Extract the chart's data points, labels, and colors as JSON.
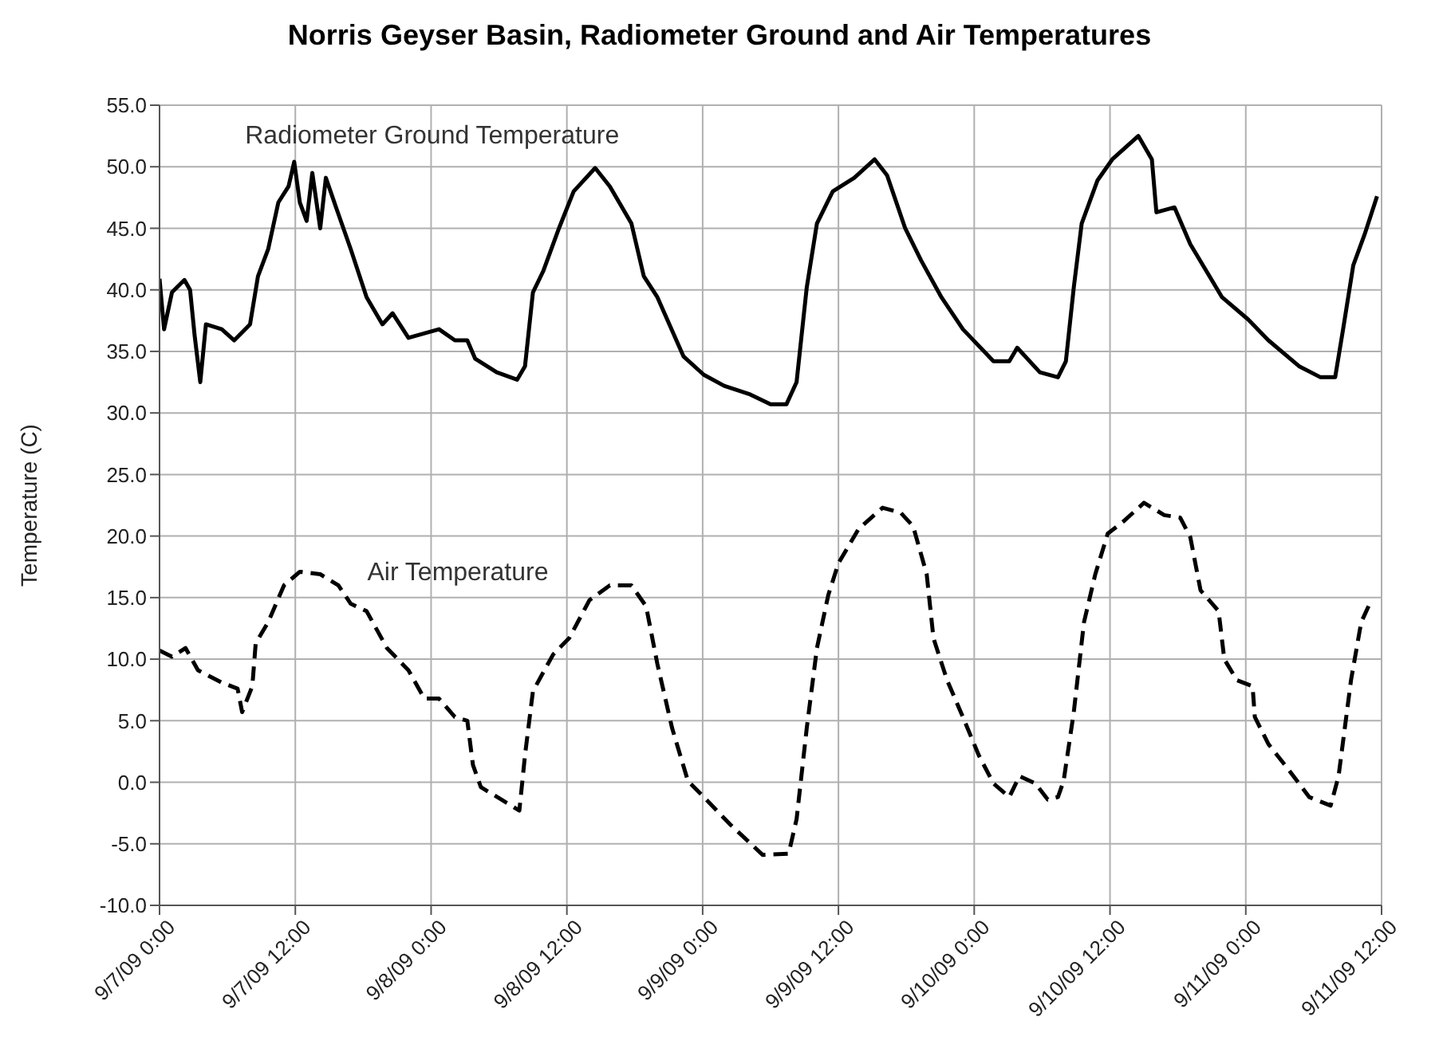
{
  "chart_data": {
    "type": "line",
    "title": "Norris Geyser Basin, Radiometer Ground and Air Temperatures",
    "ylabel": "Temperature (C)",
    "xlim": [
      "--09-07T00:00",
      "--09-11T12:00"
    ],
    "xticks": [
      {
        "value": "--09-07T00:00",
        "label": "9/7/09 0:00"
      },
      {
        "value": "--09-07T12:00",
        "label": "9/7/09 12:00"
      },
      {
        "value": "--09-08T00:00",
        "label": "9/8/09 0:00"
      },
      {
        "value": "--09-08T12:00",
        "label": "9/8/09 12:00"
      },
      {
        "value": "--09-09T00:00",
        "label": "9/9/09 0:00"
      },
      {
        "value": "--09-09T12:00",
        "label": "9/9/09 12:00"
      },
      {
        "value": "--09-10T00:00",
        "label": "9/10/09 0:00"
      },
      {
        "value": "--09-10T12:00",
        "label": "9/10/09 12:00"
      },
      {
        "value": "--09-11T00:00",
        "label": "9/11/09 0:00"
      },
      {
        "value": "--09-11T12:00",
        "label": "9/11/09 12:00"
      }
    ],
    "ylim": [
      -10,
      55
    ],
    "yticks": [
      {
        "value": -10,
        "label": "-10.0"
      },
      {
        "value": -5,
        "label": "-5.0"
      },
      {
        "value": 0,
        "label": "0.0"
      },
      {
        "value": 5,
        "label": "5.0"
      },
      {
        "value": 10,
        "label": "10.0"
      },
      {
        "value": 15,
        "label": "15.0"
      },
      {
        "value": 20,
        "label": "20.0"
      },
      {
        "value": 25,
        "label": "25.0"
      },
      {
        "value": 30,
        "label": "30.0"
      },
      {
        "value": 35,
        "label": "35.0"
      },
      {
        "value": 40,
        "label": "40.0"
      },
      {
        "value": 45,
        "label": "45.0"
      },
      {
        "value": 50,
        "label": "50.0"
      },
      {
        "value": 55,
        "label": "55.0"
      }
    ],
    "grid": true,
    "marker": "none",
    "legend": false,
    "series": [
      {
        "name": "Radiometer Ground Temperature",
        "color": "#000000",
        "line_style": "solid",
        "x": [
          "--09-07T00:00",
          "--09-07T00:24",
          "--09-07T01:06",
          "--09-07T02:12",
          "--09-07T02:42",
          "--09-07T03:06",
          "--09-07T03:36",
          "--09-07T04:06",
          "--09-07T05:30",
          "--09-07T06:36",
          "--09-07T08:00",
          "--09-07T08:42",
          "--09-07T09:36",
          "--09-07T10:30",
          "--09-07T11:24",
          "--09-07T11:54",
          "--09-07T12:24",
          "--09-07T13:00",
          "--09-07T13:30",
          "--09-07T14:12",
          "--09-07T14:42",
          "--09-07T15:36",
          "--09-07T16:54",
          "--09-07T18:18",
          "--09-07T19:42",
          "--09-07T20:36",
          "--09-07T22:00",
          "--09-08T00:42",
          "--09-08T02:06",
          "--09-08T03:12",
          "--09-08T03:54",
          "--09-08T05:48",
          "--09-08T07:36",
          "--09-08T08:18",
          "--09-08T09:00",
          "--09-08T09:54",
          "--09-08T11:18",
          "--09-08T12:36",
          "--09-08T14:30",
          "--09-08T15:48",
          "--09-08T17:42",
          "--09-08T18:48",
          "--09-08T20:00",
          "--09-08T22:18",
          "--09-09T00:06",
          "--09-09T01:54",
          "--09-09T04:12",
          "--09-09T06:00",
          "--09-09T07:24",
          "--09-09T08:18",
          "--09-09T09:12",
          "--09-09T10:06",
          "--09-09T11:30",
          "--09-09T13:24",
          "--09-09T15:12",
          "--09-09T16:18",
          "--09-09T17:54",
          "--09-09T19:18",
          "--09-09T21:06",
          "--09-09T23:00",
          "--09-10T01:42",
          "--09-10T03:06",
          "--09-10T03:48",
          "--09-10T05:48",
          "--09-10T07:24",
          "--09-10T08:06",
          "--09-10T08:48",
          "--09-10T09:30",
          "--09-10T10:54",
          "--09-10T12:12",
          "--09-10T14:30",
          "--09-10T15:42",
          "--09-10T16:06",
          "--09-10T17:42",
          "--09-10T19:06",
          "--09-10T21:54",
          "--09-11T00:12",
          "--09-11T02:00",
          "--09-11T04:42",
          "--09-11T06:36",
          "--09-11T07:54",
          "--09-11T08:36",
          "--09-11T09:30",
          "--09-11T10:30",
          "--09-11T11:36"
        ],
        "values": [
          40.9,
          36.8,
          39.8,
          40.8,
          40.0,
          36.3,
          32.5,
          37.2,
          36.8,
          35.9,
          37.2,
          41.1,
          43.3,
          47.1,
          48.4,
          50.4,
          47.1,
          45.6,
          49.5,
          45.0,
          49.1,
          46.7,
          43.3,
          39.4,
          37.2,
          38.1,
          36.1,
          36.8,
          35.9,
          35.9,
          34.4,
          33.3,
          32.7,
          33.8,
          39.8,
          41.5,
          45.0,
          48.0,
          49.9,
          48.4,
          45.4,
          41.1,
          39.4,
          34.6,
          33.1,
          32.2,
          31.5,
          30.7,
          30.7,
          32.5,
          40.2,
          45.4,
          48.0,
          49.1,
          50.6,
          49.3,
          45.0,
          42.4,
          39.4,
          36.8,
          34.2,
          34.2,
          35.3,
          33.3,
          32.9,
          34.2,
          40.2,
          45.4,
          48.9,
          50.6,
          52.5,
          50.6,
          46.3,
          46.7,
          43.7,
          39.4,
          37.6,
          35.9,
          33.8,
          32.9,
          32.9,
          36.8,
          42.0,
          44.5,
          47.6
        ]
      },
      {
        "name": "Air Temperature",
        "color": "#000000",
        "line_style": "dashed",
        "x": [
          "--09-07T00:00",
          "--09-07T01:06",
          "--09-07T02:18",
          "--09-07T03:24",
          "--09-07T05:30",
          "--09-07T06:54",
          "--09-07T07:18",
          "--09-07T08:12",
          "--09-07T08:30",
          "--09-07T09:36",
          "--09-07T11:00",
          "--09-07T12:24",
          "--09-07T14:12",
          "--09-07T15:48",
          "--09-07T16:54",
          "--09-07T18:18",
          "--09-07T20:06",
          "--09-07T22:00",
          "--09-07T23:24",
          "--09-08T00:42",
          "--09-08T02:06",
          "--09-08T03:12",
          "--09-08T03:42",
          "--09-08T04:24",
          "--09-08T06:12",
          "--09-08T07:48",
          "--09-08T08:18",
          "--09-08T09:00",
          "--09-08T10:48",
          "--09-08T12:12",
          "--09-08T14:00",
          "--09-08T15:48",
          "--09-08T17:42",
          "--09-08T19:00",
          "--09-08T20:00",
          "--09-08T21:18",
          "--09-08T22:42",
          "--09-09T00:06",
          "--09-09T02:24",
          "--09-09T05:18",
          "--09-09T07:36",
          "--09-09T08:18",
          "--09-09T09:12",
          "--09-09T10:06",
          "--09-09T11:06",
          "--09-09T12:00",
          "--09-09T13:48",
          "--09-09T15:54",
          "--09-09T17:30",
          "--09-09T18:36",
          "--09-09T19:48",
          "--09-09T20:24",
          "--09-09T21:36",
          "--09-09T23:00",
          "--09-10T00:24",
          "--09-10T01:42",
          "--09-10T03:06",
          "--09-10T04:00",
          "--09-10T05:24",
          "--09-10T06:30",
          "--09-10T07:24",
          "--09-10T07:54",
          "--09-10T08:48",
          "--09-10T09:42",
          "--09-10T10:42",
          "--09-10T11:48",
          "--09-10T13:12",
          "--09-10T15:00",
          "--09-10T16:48",
          "--09-10T18:12",
          "--09-10T19:06",
          "--09-10T20:00",
          "--09-10T21:36",
          "--09-10T22:06",
          "--09-10T23:12",
          "--09-11T00:36",
          "--09-11T00:48",
          "--09-11T02:00",
          "--09-11T03:48",
          "--09-11T05:36",
          "--09-11T07:30",
          "--09-11T08:12",
          "--09-11T09:18",
          "--09-11T10:12",
          "--09-11T11:06"
        ],
        "values": [
          10.7,
          10.2,
          10.9,
          9.1,
          8.1,
          7.6,
          5.7,
          7.8,
          11.3,
          13.0,
          16.0,
          17.1,
          16.9,
          16.0,
          14.5,
          13.9,
          10.9,
          9.1,
          6.8,
          6.8,
          5.3,
          5.0,
          1.4,
          -0.4,
          -1.4,
          -2.3,
          2.2,
          7.4,
          10.4,
          11.7,
          14.8,
          16.0,
          16.0,
          14.3,
          9.6,
          4.4,
          0.1,
          -1.2,
          -3.4,
          -5.9,
          -5.8,
          -3.0,
          4.4,
          10.9,
          15.2,
          17.8,
          20.6,
          22.3,
          21.9,
          20.8,
          16.9,
          11.7,
          8.3,
          5.3,
          2.2,
          -0.1,
          -1.2,
          0.5,
          -0.1,
          -1.4,
          -1.2,
          0.1,
          5.7,
          13.0,
          16.9,
          20.2,
          21.2,
          22.7,
          21.7,
          21.5,
          19.9,
          15.6,
          13.9,
          10.0,
          8.3,
          7.8,
          5.3,
          3.1,
          1.0,
          -1.2,
          -1.9,
          0.5,
          8.3,
          13.0,
          14.8
        ]
      }
    ]
  }
}
